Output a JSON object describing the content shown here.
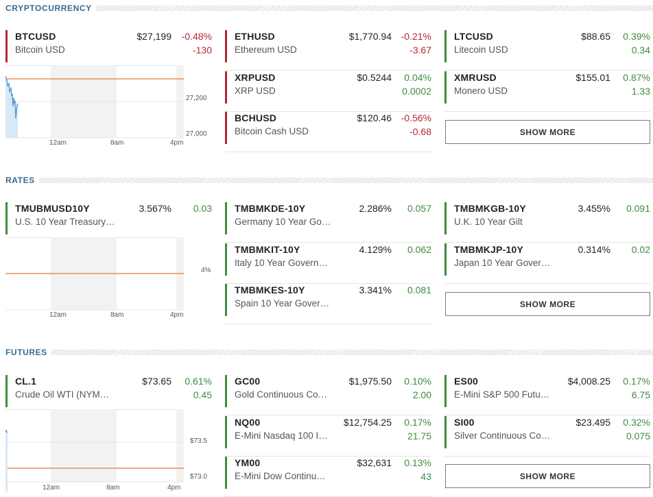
{
  "sections": {
    "crypto": {
      "title": "CRYPTOCURRENCY",
      "show_more": "SHOW MORE",
      "chart": {
        "y_ticks": [
          "27,200",
          "27,000"
        ],
        "x_ticks": [
          "12am",
          "8am",
          "4pm"
        ]
      },
      "quotes": [
        {
          "symbol": "BTCUSD",
          "name": "Bitcoin USD",
          "price": "$27,199",
          "pct": "-0.48%",
          "chg": "-130"
        },
        {
          "symbol": "ETHUSD",
          "name": "Ethereum USD",
          "price": "$1,770.94",
          "pct": "-0.21%",
          "chg": "-3.67"
        },
        {
          "symbol": "XRPUSD",
          "name": "XRP USD",
          "price": "$0.5244",
          "pct": "0.04%",
          "chg": "0.0002"
        },
        {
          "symbol": "BCHUSD",
          "name": "Bitcoin Cash USD",
          "price": "$120.46",
          "pct": "-0.56%",
          "chg": "-0.68"
        },
        {
          "symbol": "LTCUSD",
          "name": "Litecoin USD",
          "price": "$88.65",
          "pct": "0.39%",
          "chg": "0.34"
        },
        {
          "symbol": "XMRUSD",
          "name": "Monero USD",
          "price": "$155.01",
          "pct": "0.87%",
          "chg": "1.33"
        }
      ]
    },
    "rates": {
      "title": "RATES",
      "show_more": "SHOW MORE",
      "chart": {
        "y_ticks": [
          "4%"
        ],
        "x_ticks": [
          "12am",
          "8am",
          "4pm"
        ]
      },
      "quotes": [
        {
          "symbol": "TMUBMUSD10Y",
          "name": "U.S. 10 Year Treasury…",
          "price": "3.567%",
          "pct": "0.03"
        },
        {
          "symbol": "TMBMKDE-10Y",
          "name": "Germany 10 Year Go…",
          "price": "2.286%",
          "pct": "0.057"
        },
        {
          "symbol": "TMBMKIT-10Y",
          "name": "Italy 10 Year Govern…",
          "price": "4.129%",
          "pct": "0.062"
        },
        {
          "symbol": "TMBMKES-10Y",
          "name": "Spain 10 Year Gover…",
          "price": "3.341%",
          "pct": "0.081"
        },
        {
          "symbol": "TMBMKGB-10Y",
          "name": "U.K. 10 Year Gilt",
          "price": "3.455%",
          "pct": "0.091"
        },
        {
          "symbol": "TMBMKJP-10Y",
          "name": "Japan 10 Year Gover…",
          "price": "0.314%",
          "pct": "0.02"
        }
      ]
    },
    "futures": {
      "title": "FUTURES",
      "show_more": "SHOW MORE",
      "chart": {
        "y_ticks": [
          "$73.5",
          "$73.0"
        ],
        "x_ticks": [
          "12am",
          "8am",
          "4pm"
        ]
      },
      "quotes": [
        {
          "symbol": "CL.1",
          "name": "Crude Oil WTI (NYM…",
          "price": "$73.65",
          "pct": "0.61%",
          "chg": "0.45"
        },
        {
          "symbol": "GC00",
          "name": "Gold Continuous Co…",
          "price": "$1,975.50",
          "pct": "0.10%",
          "chg": "2.00"
        },
        {
          "symbol": "NQ00",
          "name": "E-Mini Nasdaq 100 I…",
          "price": "$12,754.25",
          "pct": "0.17%",
          "chg": "21.75"
        },
        {
          "symbol": "YM00",
          "name": "E-Mini Dow Continu…",
          "price": "$32,631",
          "pct": "0.13%",
          "chg": "43"
        },
        {
          "symbol": "ES00",
          "name": "E-Mini S&P 500 Futu…",
          "price": "$4,008.25",
          "pct": "0.17%",
          "chg": "6.75"
        },
        {
          "symbol": "SI00",
          "name": "Silver Continuous Co…",
          "price": "$23.495",
          "pct": "0.32%",
          "chg": "0.075"
        }
      ]
    }
  },
  "colors": {
    "negative": "#b42733",
    "positive": "#3e8a3e",
    "section_title": "#3b6a8f",
    "chart_line": "#5b9bd5",
    "chart_ref_line": "#e07b39"
  }
}
